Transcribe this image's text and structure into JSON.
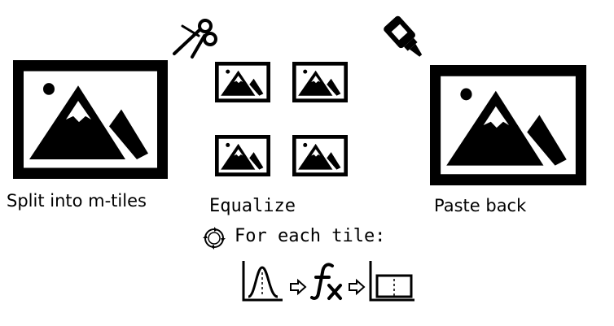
{
  "labels": {
    "split": "Split into m-tiles",
    "equalize": "Equalize",
    "for_each": "For each tile:",
    "paste": "Paste back"
  },
  "icons": {
    "left_image": "image-icon",
    "tiles": "image-icon",
    "right_image": "image-icon",
    "scissors": "scissors-icon",
    "glue": "glue-bottle-icon",
    "loop": "loop-icon",
    "histogram": "histogram-icon",
    "function": "function-icon",
    "clip": "clipped-histogram-icon",
    "arrow": "arrow-right-icon"
  },
  "colors": {
    "ink": "#000000",
    "paper": "#ffffff"
  }
}
